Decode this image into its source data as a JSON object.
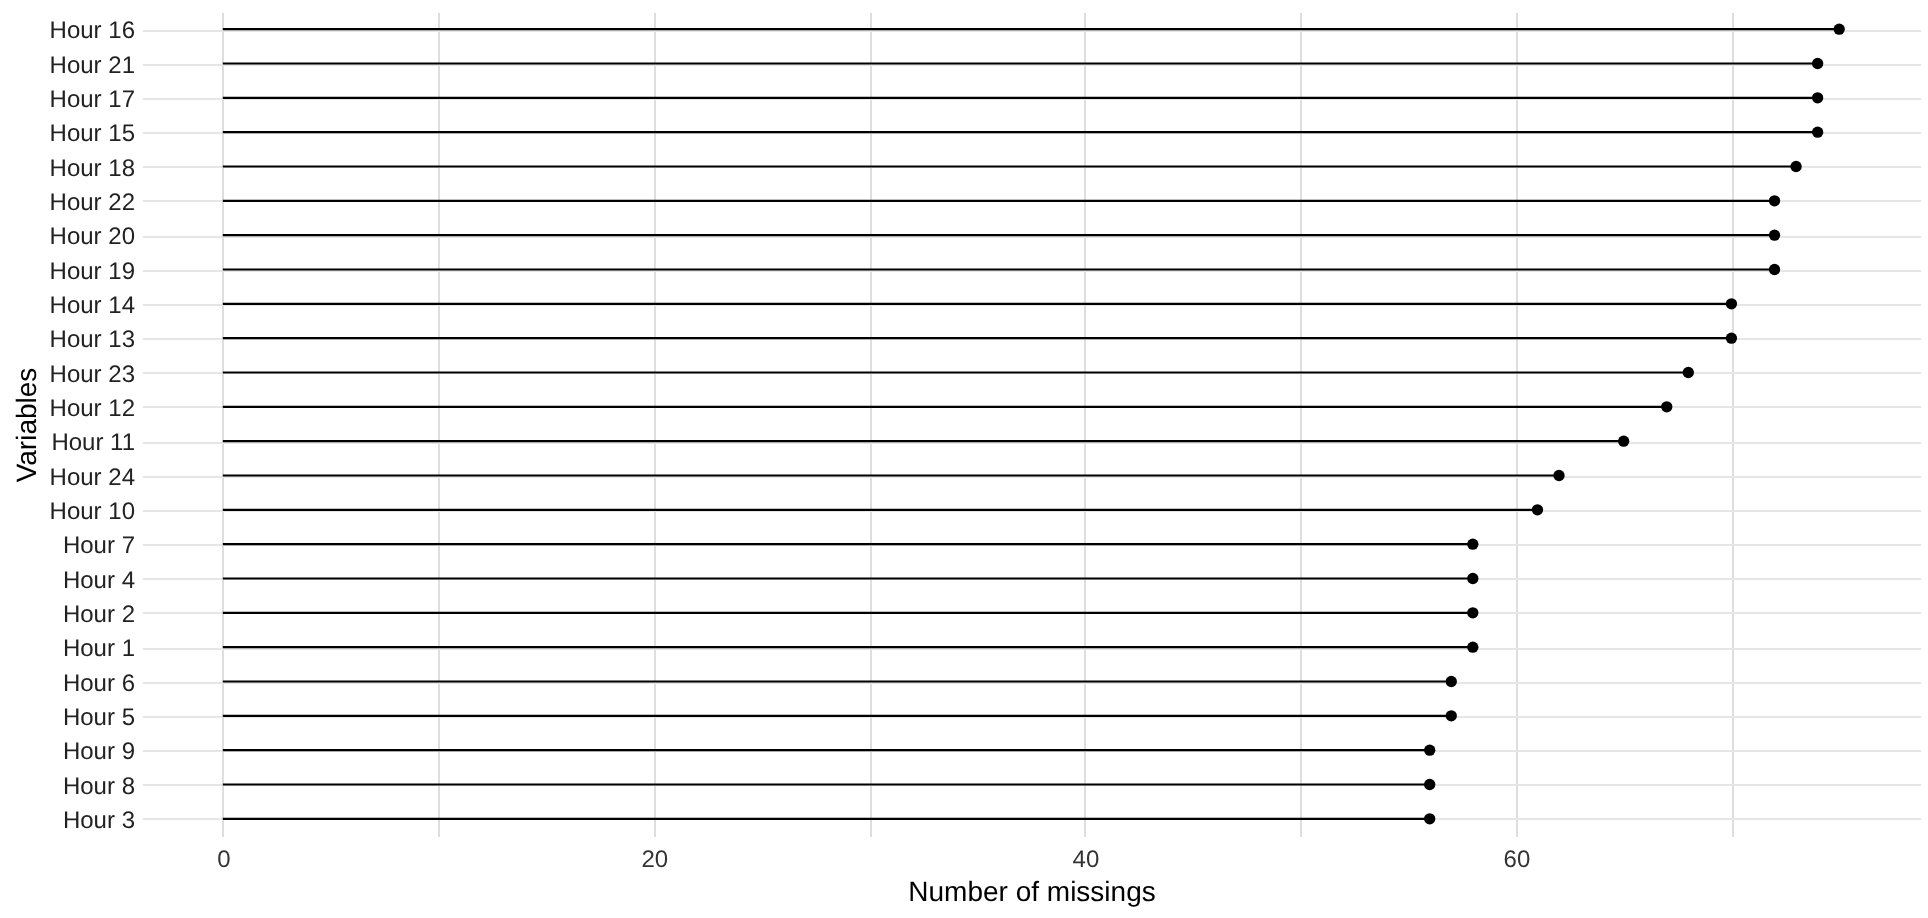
{
  "chart_data": {
    "type": "lollipop",
    "orientation": "horizontal",
    "xlabel": "Number of missings",
    "ylabel": "Variables",
    "categories": [
      "Hour 16",
      "Hour 21",
      "Hour 17",
      "Hour 15",
      "Hour 18",
      "Hour 22",
      "Hour 20",
      "Hour 19",
      "Hour 14",
      "Hour 13",
      "Hour 23",
      "Hour 12",
      "Hour 11",
      "Hour 24",
      "Hour 10",
      "Hour 7",
      "Hour 4",
      "Hour 2",
      "Hour 1",
      "Hour 6",
      "Hour 5",
      "Hour 9",
      "Hour 8",
      "Hour 3"
    ],
    "values": [
      75,
      74,
      74,
      74,
      73,
      72,
      72,
      72,
      70,
      70,
      68,
      67,
      65,
      62,
      61,
      58,
      58,
      58,
      58,
      57,
      57,
      56,
      56,
      56
    ],
    "color": "#000000",
    "xlim": [
      -3.75,
      78.75
    ],
    "xticks": [
      0,
      {
        "value": 10,
        "label": null
      },
      20,
      {
        "value": 30,
        "label": null
      },
      40,
      {
        "value": 50,
        "label": null
      },
      60,
      {
        "value": 70,
        "label": null
      }
    ],
    "grid": true,
    "marker": "circle"
  }
}
